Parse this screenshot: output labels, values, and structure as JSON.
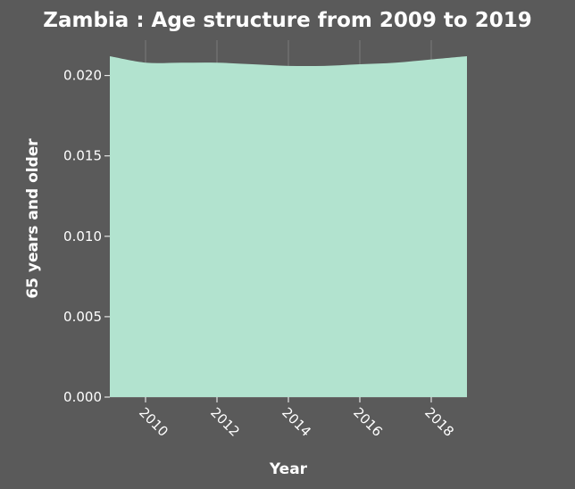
{
  "chart_data": {
    "type": "area",
    "title": "Zambia : Age structure from 2009 to 2019",
    "xlabel": "Year",
    "ylabel": "65 years and older",
    "x": [
      2009,
      2010,
      2011,
      2012,
      2013,
      2014,
      2015,
      2016,
      2017,
      2018,
      2019
    ],
    "series": [
      {
        "values": [
          0.0212,
          0.0208,
          0.0208,
          0.0208,
          0.0207,
          0.0206,
          0.0206,
          0.0207,
          0.0208,
          0.021,
          0.0212
        ]
      }
    ],
    "xlim": [
      2009,
      2019
    ],
    "ylim": [
      0.0,
      0.0222
    ],
    "x_ticks": [
      2010,
      2012,
      2014,
      2016,
      2018
    ],
    "x_tick_labels": [
      "2010",
      "2012",
      "2014",
      "2016",
      "2018"
    ],
    "y_ticks": [
      0.0,
      0.005,
      0.01,
      0.015,
      0.02
    ],
    "y_tick_labels": [
      "0.000",
      "0.005",
      "0.010",
      "0.015",
      "0.020"
    ],
    "grid": true,
    "legend": "none"
  },
  "colors": {
    "background": "#5a5a5a",
    "plot_background": "#5a5a5a",
    "area_fill": "#b2e3cf",
    "grid": "#7a7a7a",
    "text": "#ffffff"
  }
}
